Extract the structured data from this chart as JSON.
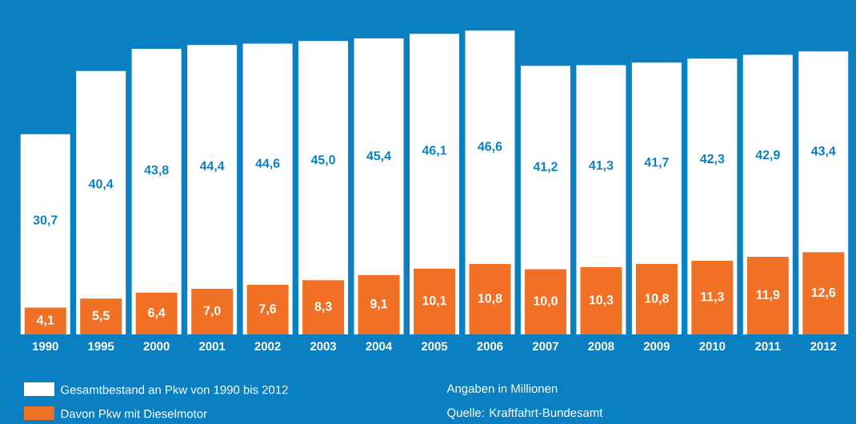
{
  "chart_data": {
    "type": "bar",
    "categories": [
      "1990",
      "1995",
      "2000",
      "2001",
      "2002",
      "2003",
      "2004",
      "2005",
      "2006",
      "2007",
      "2008",
      "2009",
      "2010",
      "2011",
      "2012"
    ],
    "series": [
      {
        "name": "Gesamtbestand an Pkw von 1990 bis 2012",
        "color": "#ffffff",
        "values": [
          30.7,
          40.4,
          43.8,
          44.4,
          44.6,
          45.0,
          45.4,
          46.1,
          46.6,
          41.2,
          41.3,
          41.7,
          42.3,
          42.9,
          43.4
        ],
        "value_labels": [
          "30,7",
          "40,4",
          "43,8",
          "44,4",
          "44,6",
          "45,0",
          "45,4",
          "46,1",
          "46,6",
          "41,2",
          "41,3",
          "41,7",
          "42,3",
          "42,9",
          "43,4"
        ]
      },
      {
        "name": "Davon Pkw mit Dieselmotor",
        "color": "#f07125",
        "values": [
          4.1,
          5.5,
          6.4,
          7.0,
          7.6,
          8.3,
          9.1,
          10.1,
          10.8,
          10.0,
          10.3,
          10.8,
          11.3,
          11.9,
          12.6
        ],
        "value_labels": [
          "4,1",
          "5,5",
          "6,4",
          "7,0",
          "7,6",
          "8,3",
          "9,1",
          "10,1",
          "10,8",
          "10,0",
          "10,3",
          "10,8",
          "11,3",
          "11,9",
          "12,6"
        ]
      }
    ],
    "annotations": [
      "Angaben in Millionen",
      "Quelle: Kraftfahrt-Bundesamt"
    ],
    "legend": "bottom"
  }
}
